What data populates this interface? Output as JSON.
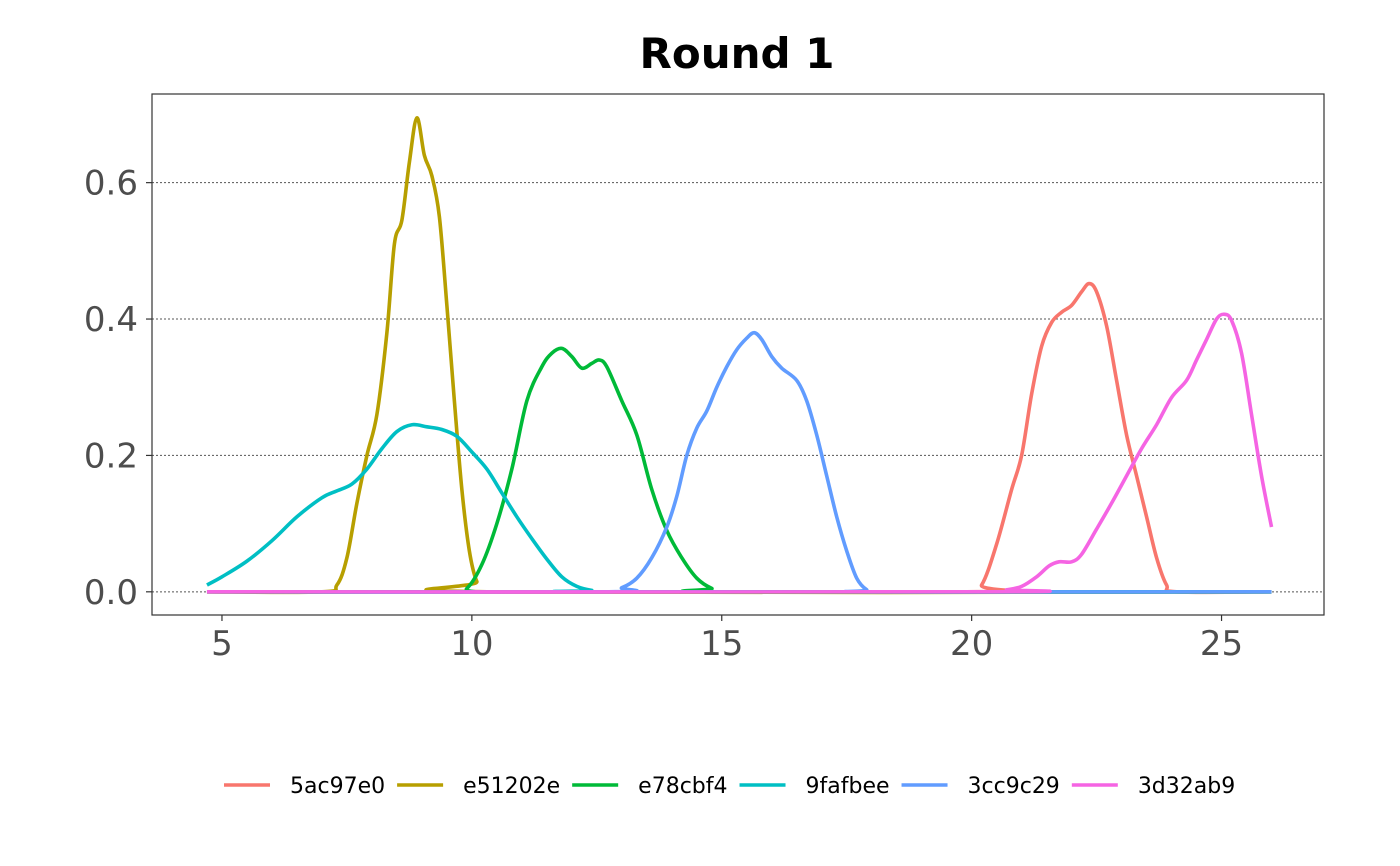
{
  "chart_data": {
    "type": "line",
    "title": "Round 1",
    "xlabel": "",
    "ylabel": "",
    "xlim": [
      3.6,
      27.05
    ],
    "ylim": [
      -0.034,
      0.73
    ],
    "x_ticks": [
      5,
      10,
      15,
      20,
      25
    ],
    "y_ticks": [
      0.0,
      0.2,
      0.4,
      0.6
    ],
    "x_tick_labels": [
      "5",
      "10",
      "15",
      "20",
      "25"
    ],
    "y_tick_labels": [
      "0.0",
      "0.2",
      "0.4",
      "0.6"
    ],
    "grid": "horizontal dotted",
    "legend_position": "bottom",
    "series": [
      {
        "name": "5ac97e0",
        "color": "#F8766D",
        "points": [
          [
            4.7,
            0
          ],
          [
            19.9,
            0
          ],
          [
            20.2,
            0.01
          ],
          [
            20.5,
            0.07
          ],
          [
            20.8,
            0.15
          ],
          [
            21.0,
            0.2
          ],
          [
            21.2,
            0.29
          ],
          [
            21.4,
            0.36
          ],
          [
            21.6,
            0.395
          ],
          [
            21.8,
            0.41
          ],
          [
            22.0,
            0.42
          ],
          [
            22.2,
            0.44
          ],
          [
            22.35,
            0.452
          ],
          [
            22.5,
            0.44
          ],
          [
            22.7,
            0.39
          ],
          [
            22.9,
            0.31
          ],
          [
            23.1,
            0.23
          ],
          [
            23.3,
            0.17
          ],
          [
            23.5,
            0.11
          ],
          [
            23.7,
            0.05
          ],
          [
            23.9,
            0.01
          ],
          [
            24.1,
            0
          ],
          [
            26.0,
            0
          ]
        ]
      },
      {
        "name": "e51202e",
        "color": "#B79F00",
        "points": [
          [
            4.7,
            0
          ],
          [
            7.0,
            0
          ],
          [
            7.3,
            0.01
          ],
          [
            7.5,
            0.05
          ],
          [
            7.7,
            0.13
          ],
          [
            7.9,
            0.2
          ],
          [
            8.1,
            0.26
          ],
          [
            8.3,
            0.38
          ],
          [
            8.45,
            0.51
          ],
          [
            8.6,
            0.545
          ],
          [
            8.75,
            0.63
          ],
          [
            8.9,
            0.695
          ],
          [
            9.05,
            0.64
          ],
          [
            9.2,
            0.61
          ],
          [
            9.35,
            0.55
          ],
          [
            9.5,
            0.42
          ],
          [
            9.65,
            0.28
          ],
          [
            9.8,
            0.15
          ],
          [
            9.95,
            0.06
          ],
          [
            10.1,
            0.015
          ],
          [
            10.3,
            0
          ],
          [
            26.0,
            0
          ]
        ]
      },
      {
        "name": "e78cbf4",
        "color": "#00BA38",
        "points": [
          [
            4.7,
            0
          ],
          [
            9.6,
            0
          ],
          [
            9.9,
            0.005
          ],
          [
            10.2,
            0.04
          ],
          [
            10.5,
            0.1
          ],
          [
            10.8,
            0.18
          ],
          [
            11.1,
            0.28
          ],
          [
            11.4,
            0.33
          ],
          [
            11.6,
            0.35
          ],
          [
            11.8,
            0.357
          ],
          [
            12.0,
            0.345
          ],
          [
            12.2,
            0.328
          ],
          [
            12.4,
            0.335
          ],
          [
            12.55,
            0.34
          ],
          [
            12.7,
            0.33
          ],
          [
            13.0,
            0.28
          ],
          [
            13.3,
            0.23
          ],
          [
            13.6,
            0.15
          ],
          [
            13.9,
            0.09
          ],
          [
            14.2,
            0.05
          ],
          [
            14.5,
            0.02
          ],
          [
            14.8,
            0.005
          ],
          [
            15.1,
            0
          ],
          [
            26.0,
            0
          ]
        ]
      },
      {
        "name": "9fafbee",
        "color": "#00BFC4",
        "points": [
          [
            4.7,
            0.01
          ],
          [
            5.0,
            0.022
          ],
          [
            5.5,
            0.045
          ],
          [
            6.0,
            0.075
          ],
          [
            6.5,
            0.11
          ],
          [
            7.0,
            0.138
          ],
          [
            7.3,
            0.148
          ],
          [
            7.6,
            0.158
          ],
          [
            7.9,
            0.18
          ],
          [
            8.2,
            0.21
          ],
          [
            8.5,
            0.235
          ],
          [
            8.8,
            0.245
          ],
          [
            9.1,
            0.242
          ],
          [
            9.4,
            0.238
          ],
          [
            9.7,
            0.228
          ],
          [
            10.0,
            0.205
          ],
          [
            10.3,
            0.18
          ],
          [
            10.6,
            0.145
          ],
          [
            10.9,
            0.11
          ],
          [
            11.2,
            0.078
          ],
          [
            11.5,
            0.048
          ],
          [
            11.8,
            0.022
          ],
          [
            12.1,
            0.008
          ],
          [
            12.4,
            0.002
          ],
          [
            12.7,
            0
          ],
          [
            26.0,
            0
          ]
        ]
      },
      {
        "name": "3cc9c29",
        "color": "#619CFF",
        "points": [
          [
            4.7,
            0
          ],
          [
            12.6,
            0
          ],
          [
            13.0,
            0.006
          ],
          [
            13.3,
            0.02
          ],
          [
            13.6,
            0.05
          ],
          [
            13.9,
            0.095
          ],
          [
            14.1,
            0.14
          ],
          [
            14.3,
            0.2
          ],
          [
            14.5,
            0.24
          ],
          [
            14.7,
            0.265
          ],
          [
            14.9,
            0.3
          ],
          [
            15.1,
            0.33
          ],
          [
            15.3,
            0.355
          ],
          [
            15.5,
            0.372
          ],
          [
            15.65,
            0.38
          ],
          [
            15.8,
            0.37
          ],
          [
            16.0,
            0.345
          ],
          [
            16.2,
            0.328
          ],
          [
            16.5,
            0.31
          ],
          [
            16.7,
            0.28
          ],
          [
            16.9,
            0.23
          ],
          [
            17.1,
            0.17
          ],
          [
            17.3,
            0.11
          ],
          [
            17.5,
            0.06
          ],
          [
            17.7,
            0.02
          ],
          [
            17.9,
            0.003
          ],
          [
            18.1,
            0
          ],
          [
            26.0,
            0
          ]
        ]
      },
      {
        "name": "3d32ab9",
        "color": "#F564E3",
        "points": [
          [
            4.7,
            0
          ],
          [
            20.3,
            0
          ],
          [
            20.7,
            0.003
          ],
          [
            21.0,
            0.008
          ],
          [
            21.3,
            0.022
          ],
          [
            21.55,
            0.038
          ],
          [
            21.75,
            0.044
          ],
          [
            22.0,
            0.044
          ],
          [
            22.2,
            0.055
          ],
          [
            22.5,
            0.092
          ],
          [
            22.8,
            0.13
          ],
          [
            23.1,
            0.17
          ],
          [
            23.4,
            0.21
          ],
          [
            23.7,
            0.245
          ],
          [
            24.0,
            0.285
          ],
          [
            24.3,
            0.31
          ],
          [
            24.5,
            0.34
          ],
          [
            24.7,
            0.37
          ],
          [
            24.9,
            0.4
          ],
          [
            25.05,
            0.407
          ],
          [
            25.2,
            0.398
          ],
          [
            25.4,
            0.35
          ],
          [
            25.6,
            0.26
          ],
          [
            25.8,
            0.17
          ],
          [
            26.0,
            0.095
          ]
        ]
      }
    ]
  }
}
